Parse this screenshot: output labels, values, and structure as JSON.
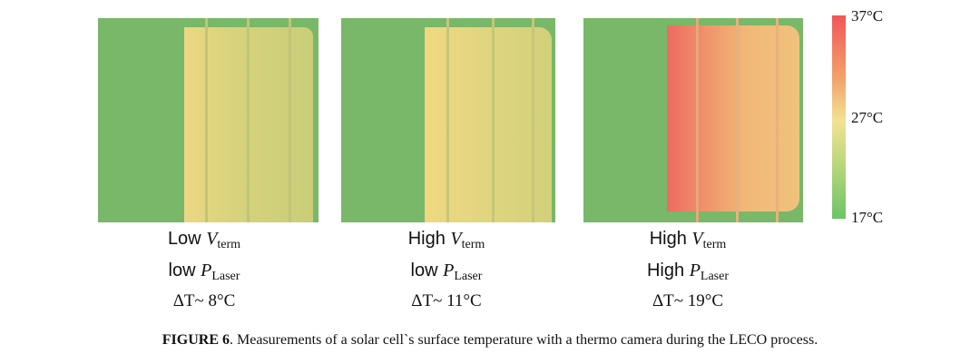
{
  "panels": [
    {
      "line1_prefix": "Low ",
      "line1_symbol": "V",
      "line1_sub": "term",
      "line2_prefix": "low ",
      "line2_symbol": "P",
      "line2_sub": "Laser",
      "line3": "ΔT~ 8°C"
    },
    {
      "line1_prefix": "High ",
      "line1_symbol": "V",
      "line1_sub": "term",
      "line2_prefix": "low ",
      "line2_symbol": "P",
      "line2_sub": "Laser",
      "line3": "ΔT~ 11°C"
    },
    {
      "line1_prefix": "High ",
      "line1_symbol": "V",
      "line1_sub": "term",
      "line2_prefix": "High ",
      "line2_symbol": "P",
      "line2_sub": "Laser",
      "line3": "ΔT~ 19°C"
    }
  ],
  "scale": {
    "max": "37°C",
    "mid": "27°C",
    "min": "17°C",
    "colors": {
      "hot": "#f0565a",
      "warm": "#f2e294",
      "cool": "#6cc466"
    }
  },
  "caption": {
    "label": "FIGURE 6",
    "text": ". Measurements of a solar cell`s surface temperature with a thermo camera during the LECO process."
  }
}
